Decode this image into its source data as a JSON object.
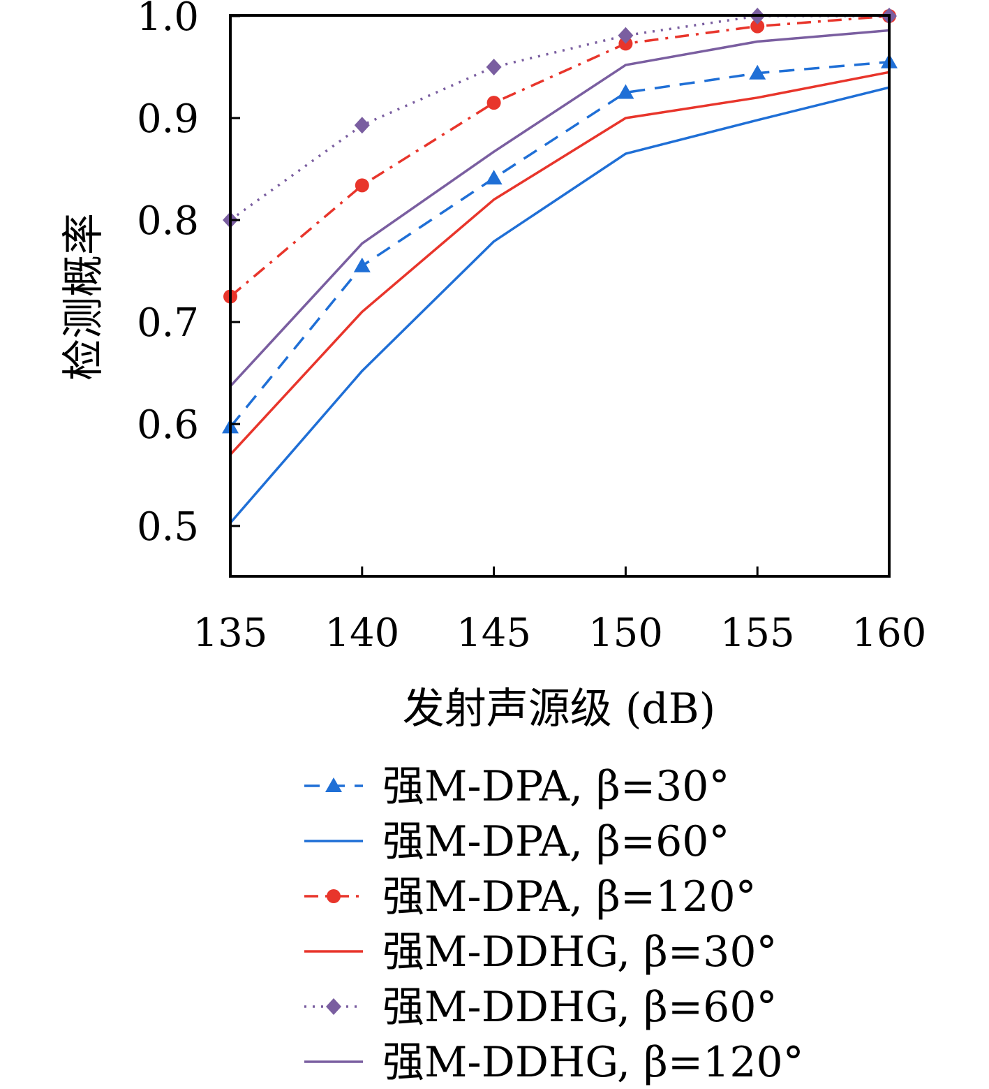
{
  "chart_data": {
    "type": "line",
    "xlabel": "发射声源级 (dB)",
    "ylabel": "检测概率",
    "x": [
      135,
      140,
      145,
      150,
      155,
      160
    ],
    "xticks": [
      "135",
      "140",
      "145",
      "150",
      "155",
      "160"
    ],
    "yticks": [
      "0.5",
      "0.6",
      "0.7",
      "0.8",
      "0.9",
      "1.0"
    ],
    "xlim": [
      135,
      160
    ],
    "ylim": [
      0.45,
      1.0
    ],
    "grid": false,
    "legend_position": "below",
    "series": [
      {
        "name": "强M-DPA, β=30°",
        "values": [
          0.597,
          0.755,
          0.841,
          0.925,
          0.944,
          0.955
        ],
        "color": "#1f6fd6",
        "dash": "dashed",
        "marker": "triangle"
      },
      {
        "name": "强M-DPA, β=60°",
        "values": [
          0.503,
          0.652,
          0.779,
          0.865,
          0.898,
          0.93
        ],
        "color": "#1f6fd6",
        "dash": "solid",
        "marker": "none"
      },
      {
        "name": "强M-DPA, β=120°",
        "values": [
          0.725,
          0.834,
          0.915,
          0.973,
          0.99,
          1.0
        ],
        "color": "#e8352b",
        "dash": "dashdot",
        "marker": "circle"
      },
      {
        "name": "强M-DDHG, β=30°",
        "values": [
          0.57,
          0.71,
          0.82,
          0.9,
          0.92,
          0.945
        ],
        "color": "#e8352b",
        "dash": "solid",
        "marker": "none"
      },
      {
        "name": "强M-DDHG, β=60°",
        "values": [
          0.8,
          0.893,
          0.95,
          0.981,
          1.0,
          1.0
        ],
        "color": "#7a5ea0",
        "dash": "dotted",
        "marker": "diamond"
      },
      {
        "name": "强M-DDHG, β=120°",
        "values": [
          0.637,
          0.777,
          0.867,
          0.952,
          0.975,
          0.986
        ],
        "color": "#7a5ea0",
        "dash": "solid",
        "marker": "none"
      }
    ]
  }
}
